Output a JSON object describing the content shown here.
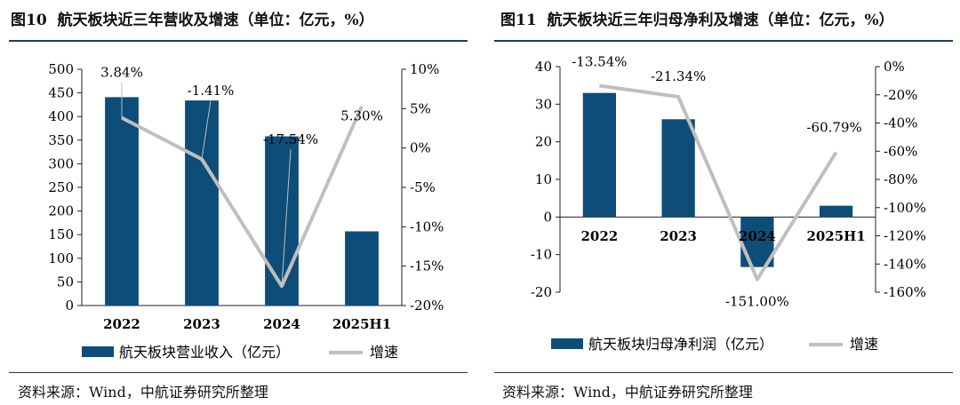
{
  "chart_data": [
    {
      "type": "bar+line",
      "figure_label": "图10",
      "title": "航天板块近三年营收及增速（单位：亿元，%）",
      "categories": [
        "2022",
        "2023",
        "2024",
        "2025H1"
      ],
      "bar_series": {
        "name": "航天板块营业收入（亿元）",
        "values": [
          441,
          434,
          358,
          157
        ],
        "color": "#0e4d78"
      },
      "line_series": {
        "name": "增速",
        "values": [
          3.84,
          -1.41,
          -17.54,
          5.3
        ],
        "labels": [
          "3.84%",
          "-1.41%",
          "-17.54%",
          "5.30%"
        ],
        "color": "#bfbfbf"
      },
      "left_axis": {
        "min": 0,
        "max": 500,
        "ticks": [
          "0",
          "50",
          "100",
          "150",
          "200",
          "250",
          "300",
          "350",
          "400",
          "450",
          "500"
        ]
      },
      "right_axis": {
        "min": -20,
        "max": 10,
        "ticks": [
          "10%",
          "5%",
          "0%",
          "-5%",
          "-10%",
          "-15%",
          "-20%"
        ]
      },
      "source": "资料来源：Wind，中航证券研究所整理"
    },
    {
      "type": "bar+line",
      "figure_label": "图11",
      "title": "航天板块近三年归母净利及增速（单位：亿元，%）",
      "categories": [
        "2022",
        "2023",
        "2024",
        "2025H1"
      ],
      "bar_series": {
        "name": "航天板块归母净利润（亿元）",
        "values": [
          33,
          26,
          -13.3,
          3
        ],
        "color": "#0e4d78"
      },
      "line_series": {
        "name": "增速",
        "values": [
          -13.54,
          -21.34,
          -151.0,
          -60.79
        ],
        "labels": [
          "-13.54%",
          "-21.34%",
          "-151.00%",
          "-60.79%"
        ],
        "color": "#bfbfbf"
      },
      "left_axis": {
        "min": -20,
        "max": 40,
        "ticks": [
          "40",
          "30",
          "20",
          "10",
          "0",
          "-10",
          "-20"
        ]
      },
      "right_axis": {
        "min": -160,
        "max": 0,
        "ticks": [
          "0%",
          "-20%",
          "-40%",
          "-60%",
          "-80%",
          "-100%",
          "-120%",
          "-140%",
          "-160%"
        ]
      },
      "source": "资料来源：Wind，中航证券研究所整理"
    }
  ]
}
